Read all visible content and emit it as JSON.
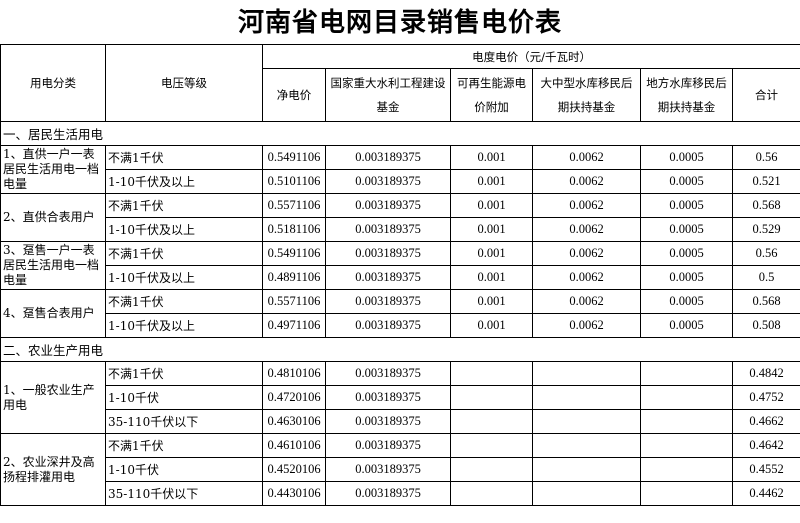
{
  "title": "河南省电网目录销售电价表",
  "header": {
    "category": "用电分类",
    "voltage": "电压等级",
    "price_group": "电度电价（元/千瓦时）",
    "columns": [
      "净电价",
      "国家重大水利工程建设基金",
      "可再生能源电价附加",
      "大中型水库移民后期扶持基金",
      "地方水库移民后期扶持基金",
      "合计"
    ]
  },
  "sections": [
    {
      "label": "一、居民生活用电",
      "groups": [
        {
          "label": "1、直供一户一表居民生活用电一档电量",
          "rows": [
            [
              "不满1千伏",
              "0.5491106",
              "0.003189375",
              "0.001",
              "0.0062",
              "0.0005",
              "0.56"
            ],
            [
              "1-10千伏及以上",
              "0.5101106",
              "0.003189375",
              "0.001",
              "0.0062",
              "0.0005",
              "0.521"
            ]
          ]
        },
        {
          "label": "2、直供合表用户",
          "rows": [
            [
              "不满1千伏",
              "0.5571106",
              "0.003189375",
              "0.001",
              "0.0062",
              "0.0005",
              "0.568"
            ],
            [
              "1-10千伏及以上",
              "0.5181106",
              "0.003189375",
              "0.001",
              "0.0062",
              "0.0005",
              "0.529"
            ]
          ]
        },
        {
          "label": "3、趸售一户一表居民生活用电一档电量",
          "rows": [
            [
              "不满1千伏",
              "0.5491106",
              "0.003189375",
              "0.001",
              "0.0062",
              "0.0005",
              "0.56"
            ],
            [
              "1-10千伏及以上",
              "0.4891106",
              "0.003189375",
              "0.001",
              "0.0062",
              "0.0005",
              "0.5"
            ]
          ]
        },
        {
          "label": "4、趸售合表用户",
          "rows": [
            [
              "不满1千伏",
              "0.5571106",
              "0.003189375",
              "0.001",
              "0.0062",
              "0.0005",
              "0.568"
            ],
            [
              "1-10千伏及以上",
              "0.4971106",
              "0.003189375",
              "0.001",
              "0.0062",
              "0.0005",
              "0.508"
            ]
          ]
        }
      ]
    },
    {
      "label": "二、农业生产用电",
      "groups": [
        {
          "label": "1、一般农业生产用电",
          "rows": [
            [
              "不满1千伏",
              "0.4810106",
              "0.003189375",
              "",
              "",
              "",
              "0.4842"
            ],
            [
              "1-10千伏",
              "0.4720106",
              "0.003189375",
              "",
              "",
              "",
              "0.4752"
            ],
            [
              "35-110千伏以下",
              "0.4630106",
              "0.003189375",
              "",
              "",
              "",
              "0.4662"
            ]
          ]
        },
        {
          "label": "2、农业深井及高扬程排灌用电",
          "rows": [
            [
              "不满1千伏",
              "0.4610106",
              "0.003189375",
              "",
              "",
              "",
              "0.4642"
            ],
            [
              "1-10千伏",
              "0.4520106",
              "0.003189375",
              "",
              "",
              "",
              "0.4552"
            ],
            [
              "35-110千伏以下",
              "0.4430106",
              "0.003189375",
              "",
              "",
              "",
              "0.4462"
            ]
          ]
        }
      ]
    }
  ]
}
